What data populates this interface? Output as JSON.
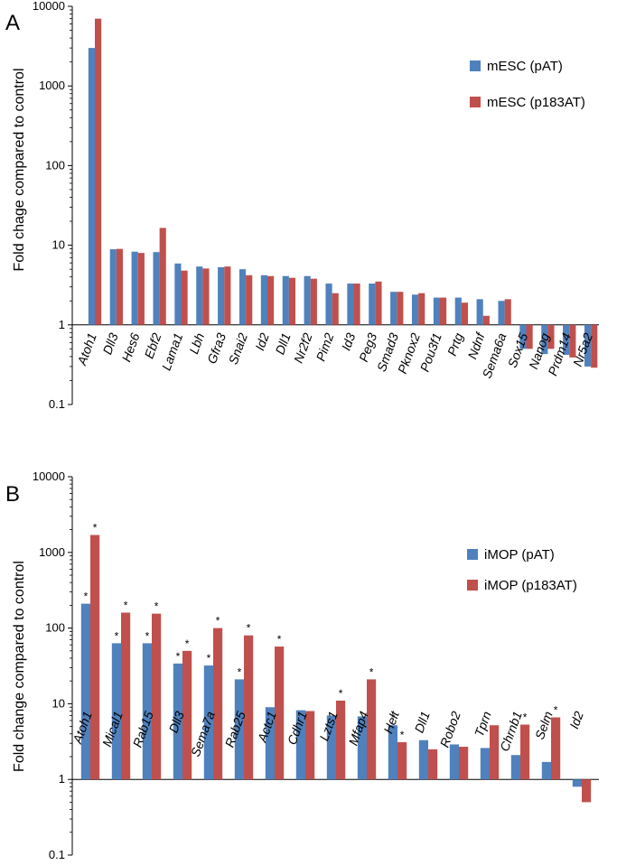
{
  "chart_data": [
    {
      "panel_label": "A",
      "type": "bar",
      "scale": "log",
      "ylabel": "Fold chage compared to control",
      "ylim": [
        0.1,
        10000
      ],
      "yticks": [
        "0.1",
        "1",
        "10",
        "100",
        "1000",
        "10000"
      ],
      "categories": [
        "Atoh1",
        "Dll3",
        "Hes6",
        "Ebf2",
        "Lama1",
        "Lbh",
        "Gfra3",
        "Snai2",
        "Id2",
        "Dll1",
        "Nr2f2",
        "Pim2",
        "Id3",
        "Peg3",
        "Smad3",
        "Pknox2",
        "Pou3f1",
        "Prtg",
        "Ndnf",
        "Sema6a",
        "Sox15",
        "Nanog",
        "Prdm14",
        "Nr5a2"
      ],
      "series": [
        {
          "name": "mESC (pAT)",
          "color": "#4F81BD",
          "values": [
            3000,
            8.9,
            8.3,
            8.2,
            5.9,
            5.4,
            5.3,
            5.0,
            4.2,
            4.1,
            4.1,
            3.3,
            3.3,
            3.3,
            2.6,
            2.4,
            2.2,
            2.2,
            2.1,
            2.0,
            0.5,
            0.43,
            0.42,
            0.3
          ],
          "stars": []
        },
        {
          "name": "mESC (p183AT)",
          "color": "#C0504D",
          "values": [
            7000,
            9.0,
            8.0,
            16.5,
            4.8,
            5.1,
            5.4,
            4.2,
            4.1,
            3.9,
            3.8,
            2.5,
            3.3,
            3.5,
            2.6,
            2.5,
            2.2,
            1.9,
            1.3,
            2.1,
            0.5,
            0.5,
            0.39,
            0.29
          ],
          "stars": []
        }
      ]
    },
    {
      "panel_label": "B",
      "type": "bar",
      "scale": "log",
      "ylabel": "Fold change compared to control",
      "ylim": [
        0.1,
        10000
      ],
      "yticks": [
        "0.1",
        "1",
        "10",
        "100",
        "1000",
        "10000"
      ],
      "star_symbol": "*",
      "categories": [
        "Atoh1",
        "Mical1",
        "Rab15",
        "Dll3",
        "Sema7a",
        "Rab25",
        "Actc1",
        "Cdhr1",
        "Lzts1",
        "Mfap4",
        "Helt",
        "Dll1",
        "Robo2",
        "Tprn",
        "Chrnb1",
        "Selm",
        "Id2"
      ],
      "series": [
        {
          "name": "iMOP (pAT)",
          "color": "#4F81BD",
          "values": [
            210,
            63,
            63,
            34,
            32,
            21,
            9.0,
            8.2,
            7.0,
            6.8,
            5.2,
            3.3,
            2.9,
            2.6,
            2.1,
            1.7,
            0.8
          ],
          "stars": [
            0,
            1,
            2,
            3,
            4,
            5,
            10
          ]
        },
        {
          "name": "iMOP (p183AT)",
          "color": "#C0504D",
          "values": [
            1700,
            160,
            155,
            50,
            100,
            80,
            57,
            8.0,
            11,
            21,
            3.1,
            2.5,
            2.7,
            5.2,
            5.3,
            6.6,
            0.5
          ],
          "stars": [
            0,
            1,
            2,
            3,
            4,
            5,
            6,
            8,
            9,
            10,
            14,
            15
          ]
        }
      ]
    }
  ]
}
